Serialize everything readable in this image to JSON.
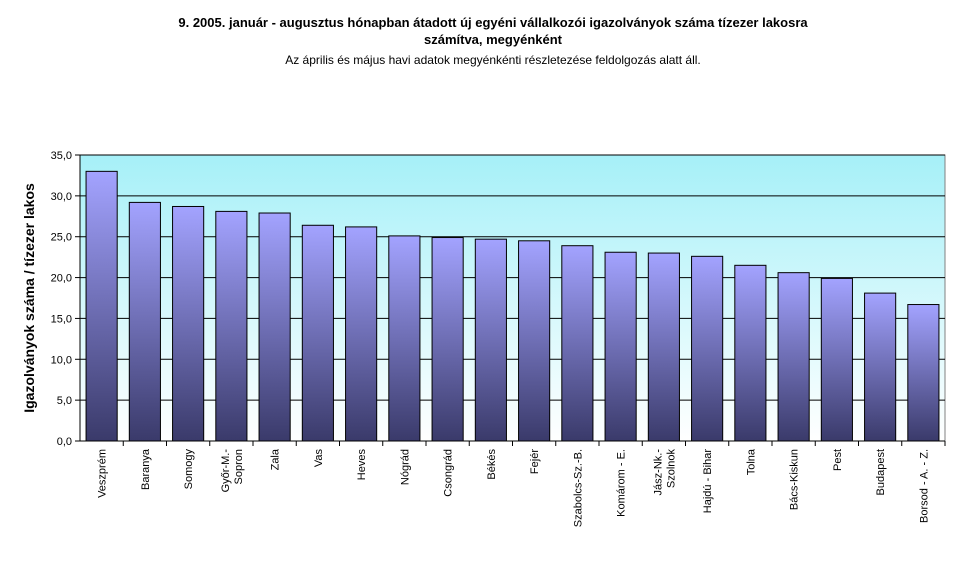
{
  "chart_data": {
    "type": "bar",
    "title_line1": "9.   2005. január - augusztus hónapban átadott új egyéni vállalkozói  igazolványok száma tízezer lakosra",
    "title_line2": "számítva, megyénként",
    "subtitle": "Az április és május havi adatok megyénkénti részletezése feldolgozás alatt áll.",
    "xlabel": "",
    "ylabel": "Igazolványok száma / tízezer lakos",
    "ylim": [
      0,
      35
    ],
    "yticks": [
      "0,0",
      "5,0",
      "10,0",
      "15,0",
      "20,0",
      "25,0",
      "30,0",
      "35,0"
    ],
    "grid": true,
    "legend": "none",
    "categories": [
      [
        "Veszprém"
      ],
      [
        "Baranya"
      ],
      [
        "Somogy"
      ],
      [
        "Győr-M.-",
        "Sopron"
      ],
      [
        "Zala"
      ],
      [
        "Vas"
      ],
      [
        "Heves"
      ],
      [
        "Nógrád"
      ],
      [
        "Csongrád"
      ],
      [
        "Békés"
      ],
      [
        "Fejér"
      ],
      [
        "Szabolcs-Sz.-B."
      ],
      [
        "Komárom - E."
      ],
      [
        "Jász-Nk.-",
        "Szolnok"
      ],
      [
        "Hajdú - Bihar"
      ],
      [
        "Tolna"
      ],
      [
        "Bács-Kiskun"
      ],
      [
        "Pest"
      ],
      [
        "Budapest"
      ],
      [
        "Borsod - A. - Z."
      ]
    ],
    "values": [
      33.0,
      29.2,
      28.7,
      28.1,
      27.9,
      26.4,
      26.2,
      25.1,
      24.9,
      24.7,
      24.5,
      23.9,
      23.1,
      23.0,
      22.6,
      21.5,
      20.6,
      19.9,
      18.1,
      16.7
    ],
    "colors": {
      "plot_top": "#a6f0f8",
      "plot_bottom": "#ffffff",
      "bar_top": "#a3a3ff",
      "bar_bottom": "#3a3a6a",
      "grid": "#000000"
    }
  }
}
